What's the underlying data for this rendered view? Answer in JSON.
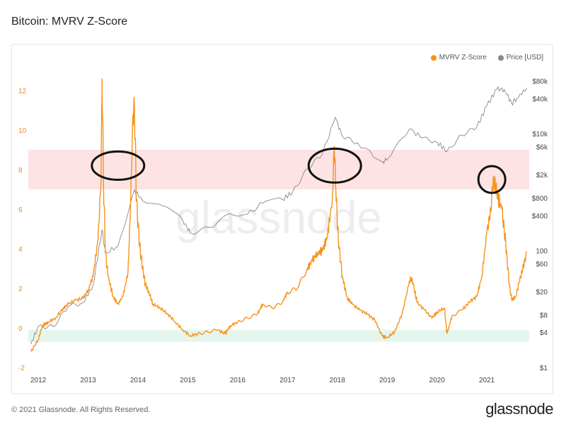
{
  "page": {
    "title": "Bitcoin: MVRV Z-Score",
    "copyright": "© 2021 Glassnode. All Rights Reserved.",
    "brand": "glassnode",
    "watermark": "glassnode"
  },
  "colors": {
    "zscore": "#f7931a",
    "price": "#888888",
    "red_band": "#fde3e3",
    "green_band": "#e4f6ec",
    "left_axis": "#e8891f",
    "right_axis": "#444444"
  },
  "chart_data": {
    "type": "line",
    "title": "Bitcoin: MVRV Z-Score",
    "xlabel": "",
    "ylabel": "",
    "legend_position": "top-right",
    "grid": false,
    "x_ticks": [
      "2012",
      "2013",
      "2014",
      "2015",
      "2016",
      "2017",
      "2018",
      "2019",
      "2020",
      "2021"
    ],
    "y_left": {
      "ticks": [
        "12",
        "10",
        "8",
        "6",
        "4",
        "2",
        "0",
        "-2"
      ],
      "range": [
        -2,
        13
      ]
    },
    "y_right": {
      "scale": "log",
      "ticks": [
        "$80k",
        "$40k",
        "$10k",
        "$6k",
        "$2k",
        "$800",
        "$400",
        "100",
        "$60",
        "$20",
        "$8",
        "$4",
        "$1"
      ],
      "range": [
        1,
        120000
      ]
    },
    "bands": [
      {
        "axis": "left",
        "from": 7,
        "to": 9,
        "color": "#fde3e3"
      },
      {
        "axis": "left",
        "from": -0.7,
        "to": -0.1,
        "color": "#e4f6ec"
      }
    ],
    "series": [
      {
        "name": "MVRV Z-Score",
        "axis": "left",
        "color": "#f7931a",
        "points": [
          [
            2011.85,
            -1.2
          ],
          [
            2012.0,
            -0.6
          ],
          [
            2012.08,
            0.1
          ],
          [
            2012.2,
            0.3
          ],
          [
            2012.35,
            0.5
          ],
          [
            2012.5,
            1.0
          ],
          [
            2012.6,
            1.2
          ],
          [
            2012.75,
            1.4
          ],
          [
            2012.9,
            1.5
          ],
          [
            2013.0,
            1.9
          ],
          [
            2013.1,
            2.6
          ],
          [
            2013.2,
            4.5
          ],
          [
            2013.26,
            7.5
          ],
          [
            2013.28,
            12.6
          ],
          [
            2013.31,
            7.0
          ],
          [
            2013.35,
            3.8
          ],
          [
            2013.4,
            2.6
          ],
          [
            2013.5,
            1.6
          ],
          [
            2013.6,
            1.2
          ],
          [
            2013.7,
            1.6
          ],
          [
            2013.8,
            2.8
          ],
          [
            2013.85,
            6.0
          ],
          [
            2013.9,
            10.8
          ],
          [
            2013.93,
            11.1
          ],
          [
            2013.97,
            6.5
          ],
          [
            2014.02,
            4.5
          ],
          [
            2014.08,
            3.2
          ],
          [
            2014.15,
            2.2
          ],
          [
            2014.22,
            1.8
          ],
          [
            2014.3,
            1.2
          ],
          [
            2014.45,
            1.0
          ],
          [
            2014.6,
            0.7
          ],
          [
            2014.75,
            0.3
          ],
          [
            2014.9,
            -0.1
          ],
          [
            2015.05,
            -0.4
          ],
          [
            2015.2,
            -0.3
          ],
          [
            2015.4,
            -0.2
          ],
          [
            2015.6,
            -0.1
          ],
          [
            2015.75,
            -0.3
          ],
          [
            2015.85,
            0.1
          ],
          [
            2016.0,
            0.3
          ],
          [
            2016.2,
            0.5
          ],
          [
            2016.4,
            0.7
          ],
          [
            2016.5,
            1.2
          ],
          [
            2016.7,
            1.0
          ],
          [
            2016.9,
            1.3
          ],
          [
            2017.0,
            1.8
          ],
          [
            2017.2,
            2.0
          ],
          [
            2017.4,
            3.0
          ],
          [
            2017.5,
            3.4
          ],
          [
            2017.6,
            3.8
          ],
          [
            2017.7,
            3.9
          ],
          [
            2017.8,
            4.6
          ],
          [
            2017.9,
            6.5
          ],
          [
            2017.94,
            9.2
          ],
          [
            2017.97,
            7.0
          ],
          [
            2018.02,
            4.5
          ],
          [
            2018.1,
            2.6
          ],
          [
            2018.2,
            1.5
          ],
          [
            2018.3,
            1.2
          ],
          [
            2018.45,
            0.9
          ],
          [
            2018.6,
            0.7
          ],
          [
            2018.75,
            0.4
          ],
          [
            2018.9,
            -0.4
          ],
          [
            2019.0,
            -0.5
          ],
          [
            2019.15,
            -0.2
          ],
          [
            2019.3,
            0.7
          ],
          [
            2019.45,
            2.4
          ],
          [
            2019.5,
            2.5
          ],
          [
            2019.6,
            1.3
          ],
          [
            2019.75,
            0.9
          ],
          [
            2019.9,
            0.5
          ],
          [
            2020.0,
            0.8
          ],
          [
            2020.15,
            1.0
          ],
          [
            2020.2,
            -0.3
          ],
          [
            2020.3,
            0.6
          ],
          [
            2020.5,
            0.9
          ],
          [
            2020.65,
            1.3
          ],
          [
            2020.8,
            1.6
          ],
          [
            2020.9,
            2.6
          ],
          [
            2021.0,
            4.8
          ],
          [
            2021.08,
            6.0
          ],
          [
            2021.13,
            7.6
          ],
          [
            2021.2,
            6.8
          ],
          [
            2021.3,
            6.0
          ],
          [
            2021.38,
            4.2
          ],
          [
            2021.45,
            2.2
          ],
          [
            2021.5,
            1.4
          ],
          [
            2021.58,
            1.6
          ],
          [
            2021.65,
            2.3
          ],
          [
            2021.72,
            3.0
          ],
          [
            2021.8,
            3.8
          ]
        ]
      },
      {
        "name": "Price [USD]",
        "axis": "right",
        "color": "#888888",
        "points": [
          [
            2011.85,
            2.5
          ],
          [
            2012.0,
            5
          ],
          [
            2012.3,
            5
          ],
          [
            2012.6,
            11
          ],
          [
            2012.9,
            13
          ],
          [
            2013.1,
            25
          ],
          [
            2013.28,
            230
          ],
          [
            2013.35,
            90
          ],
          [
            2013.6,
            120
          ],
          [
            2013.93,
            1100
          ],
          [
            2014.1,
            700
          ],
          [
            2014.5,
            580
          ],
          [
            2014.9,
            330
          ],
          [
            2015.05,
            200
          ],
          [
            2015.5,
            250
          ],
          [
            2015.85,
            430
          ],
          [
            2016.2,
            420
          ],
          [
            2016.5,
            650
          ],
          [
            2016.9,
            750
          ],
          [
            2017.1,
            1000
          ],
          [
            2017.4,
            2500
          ],
          [
            2017.7,
            4500
          ],
          [
            2017.96,
            19000
          ],
          [
            2018.1,
            9000
          ],
          [
            2018.4,
            7000
          ],
          [
            2018.9,
            3300
          ],
          [
            2019.0,
            3600
          ],
          [
            2019.45,
            12000
          ],
          [
            2019.7,
            8500
          ],
          [
            2020.0,
            7200
          ],
          [
            2020.2,
            5000
          ],
          [
            2020.5,
            9500
          ],
          [
            2020.8,
            13000
          ],
          [
            2021.0,
            30000
          ],
          [
            2021.2,
            58000
          ],
          [
            2021.35,
            57000
          ],
          [
            2021.5,
            33000
          ],
          [
            2021.6,
            40000
          ],
          [
            2021.8,
            61000
          ]
        ]
      }
    ]
  }
}
